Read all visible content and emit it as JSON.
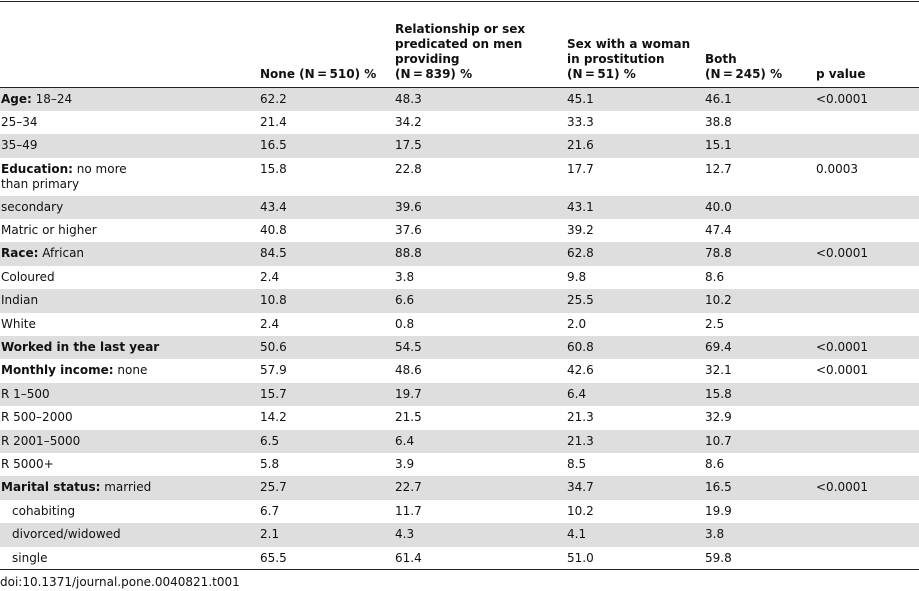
{
  "table": {
    "headers": [
      {
        "lines": [
          ""
        ]
      },
      {
        "lines": [
          "None (N = 510) %"
        ]
      },
      {
        "lines": [
          "Relationship or sex",
          "predicated on men",
          "providing",
          "(N = 839) %"
        ]
      },
      {
        "lines": [
          "Sex with a woman",
          "in prostitution",
          "(N = 51) %"
        ]
      },
      {
        "lines": [
          "Both",
          "(N = 245) %"
        ]
      },
      {
        "lines": [
          "p value"
        ]
      }
    ],
    "rows": [
      {
        "label_bold": "Age:",
        "label": " 18–24",
        "values": [
          "62.2",
          "48.3",
          "45.1",
          "46.1",
          "<0.0001"
        ],
        "shaded": true
      },
      {
        "label_bold": "",
        "label": "25–34",
        "values": [
          "21.4",
          "34.2",
          "33.3",
          "38.8",
          ""
        ],
        "shaded": false
      },
      {
        "label_bold": "",
        "label": "35–49",
        "values": [
          "16.5",
          "17.5",
          "21.6",
          "15.1",
          ""
        ],
        "shaded": true
      },
      {
        "label_bold": "Education:",
        "label": " no more",
        "label_line2": "than primary",
        "values": [
          "15.8",
          "22.8",
          "17.7",
          "12.7",
          "0.0003"
        ],
        "shaded": false,
        "tall": true
      },
      {
        "label_bold": "",
        "label": "secondary",
        "values": [
          "43.4",
          "39.6",
          "43.1",
          "40.0",
          ""
        ],
        "shaded": true
      },
      {
        "label_bold": "",
        "label": "Matric or higher",
        "values": [
          "40.8",
          "37.6",
          "39.2",
          "47.4",
          ""
        ],
        "shaded": false
      },
      {
        "label_bold": "Race:",
        "label": " African",
        "values": [
          "84.5",
          "88.8",
          "62.8",
          "78.8",
          "<0.0001"
        ],
        "shaded": true
      },
      {
        "label_bold": "",
        "label": "Coloured",
        "values": [
          "2.4",
          "3.8",
          "9.8",
          "8.6",
          ""
        ],
        "shaded": false
      },
      {
        "label_bold": "",
        "label": "Indian",
        "values": [
          "10.8",
          "6.6",
          "25.5",
          "10.2",
          ""
        ],
        "shaded": true
      },
      {
        "label_bold": "",
        "label": "White",
        "values": [
          "2.4",
          "0.8",
          "2.0",
          "2.5",
          ""
        ],
        "shaded": false
      },
      {
        "label_bold": "Worked in the last year",
        "label": "",
        "values": [
          "50.6",
          "54.5",
          "60.8",
          "69.4",
          "<0.0001"
        ],
        "shaded": true
      },
      {
        "label_bold": "Monthly income:",
        "label": " none",
        "values": [
          "57.9",
          "48.6",
          "42.6",
          "32.1",
          "<0.0001"
        ],
        "shaded": false
      },
      {
        "label_bold": "",
        "label": "R 1–500",
        "values": [
          "15.7",
          "19.7",
          "6.4",
          "15.8",
          ""
        ],
        "shaded": true
      },
      {
        "label_bold": "",
        "label": "R 500–2000",
        "values": [
          "14.2",
          "21.5",
          "21.3",
          "32.9",
          ""
        ],
        "shaded": false
      },
      {
        "label_bold": "",
        "label": "R 2001–5000",
        "values": [
          "6.5",
          "6.4",
          "21.3",
          "10.7",
          ""
        ],
        "shaded": true
      },
      {
        "label_bold": "",
        "label": "R 5000+",
        "values": [
          "5.8",
          "3.9",
          "8.5",
          "8.6",
          ""
        ],
        "shaded": false
      },
      {
        "label_bold": "Marital status:",
        "label": " married",
        "values": [
          "25.7",
          "22.7",
          "34.7",
          "16.5",
          "<0.0001"
        ],
        "shaded": true
      },
      {
        "label_bold": "",
        "label": "cohabiting",
        "indent": true,
        "values": [
          "6.7",
          "11.7",
          "10.2",
          "19.9",
          ""
        ],
        "shaded": false
      },
      {
        "label_bold": "",
        "label": "divorced/widowed",
        "indent": true,
        "values": [
          "2.1",
          "4.3",
          "4.1",
          "3.8",
          ""
        ],
        "shaded": true
      },
      {
        "label_bold": "",
        "label": "single",
        "indent": true,
        "values": [
          "65.5",
          "61.4",
          "51.0",
          "59.8",
          ""
        ],
        "shaded": false
      }
    ]
  },
  "footer": {
    "doi": "doi:10.1371/journal.pone.0040821.t001"
  }
}
